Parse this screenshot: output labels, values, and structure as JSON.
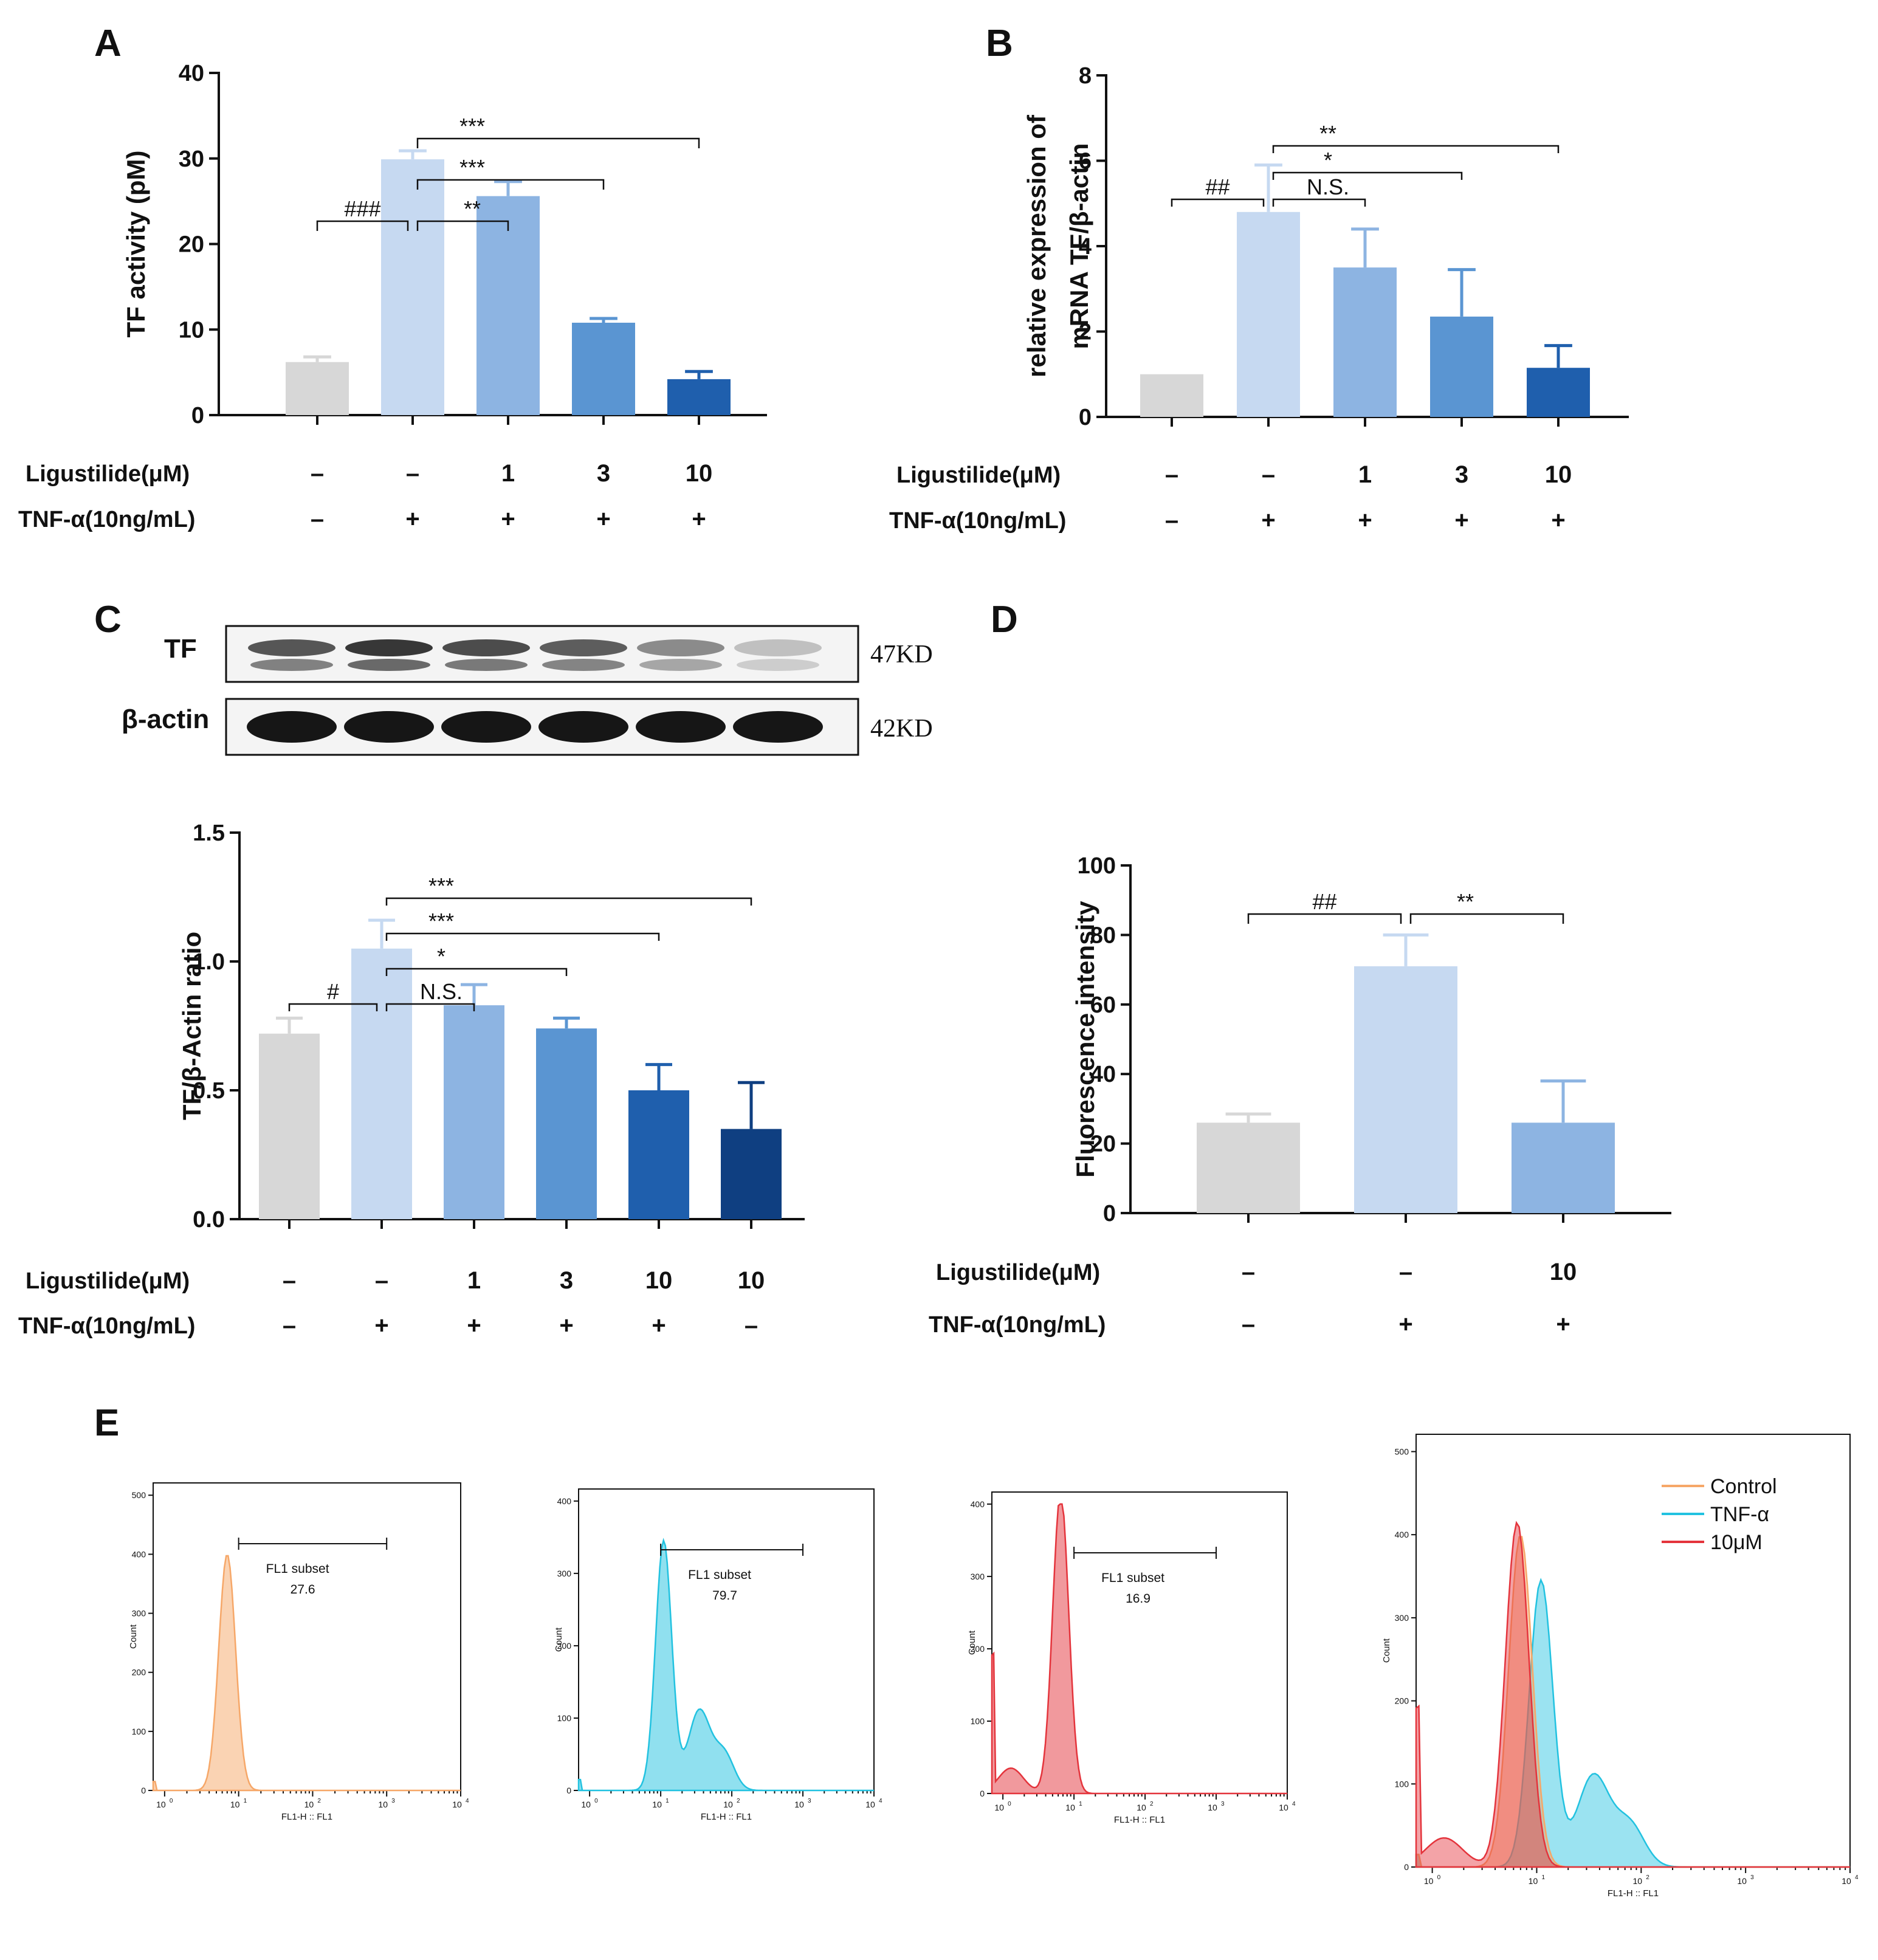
{
  "panel_labels": {
    "A": "A",
    "B": "B",
    "C": "C",
    "D": "D",
    "E": "E"
  },
  "colors": {
    "gray": "#d7d7d7",
    "light": "#c6d9f1",
    "mid": "#8db4e2",
    "blue": "#5a95d2",
    "dark": "#1f5fad",
    "darkest": "#0f3f81",
    "orange": "#f6a768",
    "cyan": "#22c2e0",
    "red": "#e4343c"
  },
  "row_labels": {
    "ligustilide": "Ligustilide(μM)",
    "tnf": "TNF-α(10ng/mL)"
  },
  "western": {
    "tf_label": "TF",
    "actin_label": "β-actin",
    "tf_kd": "47KD",
    "actin_kd": "42KD"
  },
  "chart_data": [
    {
      "id": "A",
      "type": "bar",
      "ylabel": "TF activity (pM)",
      "ylim": [
        0,
        40
      ],
      "yticks": [
        0,
        10,
        20,
        30,
        40
      ],
      "categories": [
        "ctrl",
        "tnf",
        "lig1",
        "lig3",
        "lig10"
      ],
      "values": [
        6.2,
        29.9,
        25.6,
        10.8,
        4.2
      ],
      "errors": [
        0.6,
        1.0,
        1.7,
        0.5,
        0.9
      ],
      "bar_colors": [
        "gray",
        "light",
        "mid",
        "blue",
        "dark"
      ],
      "ligustilide": [
        "–",
        "–",
        "1",
        "3",
        "10"
      ],
      "tnf": [
        "–",
        "+",
        "+",
        "+",
        "+"
      ],
      "comparisons": [
        {
          "from": 0,
          "to": 1,
          "label": "###"
        },
        {
          "from": 1,
          "to": 2,
          "label": "**"
        },
        {
          "from": 1,
          "to": 3,
          "label": "***"
        },
        {
          "from": 1,
          "to": 4,
          "label": "***"
        }
      ]
    },
    {
      "id": "B",
      "type": "bar",
      "ylabel": [
        "relative expression of",
        "mRNA TF/β-actin"
      ],
      "ylim": [
        0,
        8
      ],
      "yticks": [
        0,
        2,
        4,
        6,
        8
      ],
      "categories": [
        "ctrl",
        "tnf",
        "lig1",
        "lig3",
        "lig10"
      ],
      "values": [
        1.0,
        4.8,
        3.5,
        2.35,
        1.15
      ],
      "errors": [
        0,
        1.1,
        0.9,
        1.1,
        0.52
      ],
      "bar_colors": [
        "gray",
        "light",
        "mid",
        "blue",
        "dark"
      ],
      "ligustilide": [
        "–",
        "–",
        "1",
        "3",
        "10"
      ],
      "tnf": [
        "–",
        "+",
        "+",
        "+",
        "+"
      ],
      "comparisons": [
        {
          "from": 0,
          "to": 1,
          "label": "##"
        },
        {
          "from": 1,
          "to": 2,
          "label": "N.S."
        },
        {
          "from": 1,
          "to": 3,
          "label": "*"
        },
        {
          "from": 1,
          "to": 4,
          "label": "**"
        }
      ]
    },
    {
      "id": "C",
      "type": "bar",
      "ylabel": "TF/β-Actin ratio",
      "ylim": [
        0,
        1.5
      ],
      "yticks": [
        "0.0",
        "0.5",
        "1.0",
        "1.5"
      ],
      "categories": [
        "ctrl",
        "tnf",
        "lig1",
        "lig3",
        "lig10",
        "lig10only"
      ],
      "values": [
        0.72,
        1.05,
        0.83,
        0.74,
        0.5,
        0.35
      ],
      "errors": [
        0.06,
        0.11,
        0.08,
        0.04,
        0.1,
        0.18
      ],
      "bar_colors": [
        "gray",
        "light",
        "mid",
        "blue",
        "dark",
        "darkest"
      ],
      "ligustilide": [
        "–",
        "–",
        "1",
        "3",
        "10",
        "10"
      ],
      "tnf": [
        "–",
        "+",
        "+",
        "+",
        "+",
        "–"
      ],
      "comparisons": [
        {
          "from": 0,
          "to": 1,
          "label": "#"
        },
        {
          "from": 1,
          "to": 2,
          "label": "N.S."
        },
        {
          "from": 1,
          "to": 3,
          "label": "*"
        },
        {
          "from": 1,
          "to": 4,
          "label": "***"
        },
        {
          "from": 1,
          "to": 5,
          "label": "***"
        }
      ]
    },
    {
      "id": "D",
      "type": "bar",
      "ylabel": "Fluorescence intensity",
      "ylim": [
        0,
        100
      ],
      "yticks": [
        0,
        20,
        40,
        60,
        80,
        100
      ],
      "categories": [
        "ctrl",
        "tnf",
        "lig10"
      ],
      "values": [
        26,
        71,
        26
      ],
      "errors": [
        2.5,
        9,
        12
      ],
      "bar_colors": [
        "gray",
        "light",
        "mid"
      ],
      "ligustilide": [
        "–",
        "–",
        "10"
      ],
      "tnf": [
        "–",
        "+",
        "+"
      ],
      "comparisons": [
        {
          "from": 0,
          "to": 1,
          "label": "##"
        },
        {
          "from": 1,
          "to": 2,
          "label": "**"
        }
      ]
    },
    {
      "id": "E",
      "type": "histogram",
      "xlabel": "FL1-H :: FL1",
      "ylabel": "Count",
      "xscale": "log",
      "xlim": [
        0.7,
        10000
      ],
      "xtick_labels": [
        "10",
        "10",
        "10",
        "10",
        "10"
      ],
      "xtick_exponents": [
        "0",
        "1",
        "2",
        "3",
        "4"
      ],
      "subset_label": "FL1 subset",
      "plots": [
        {
          "name": "Control",
          "color": "orange",
          "ylim": [
            0,
            500
          ],
          "yticks": [
            "0",
            "100",
            "200",
            "300",
            "400",
            "500"
          ],
          "peak_x": 7,
          "peak_y": 400,
          "subset_value": "27.6"
        },
        {
          "name": "TNF-α",
          "color": "cyan",
          "ylim": [
            0,
            400
          ],
          "yticks": [
            "0",
            "100",
            "200",
            "300",
            "400"
          ],
          "peak_x": 11,
          "peak_y": 345,
          "subset_value": "79.7"
        },
        {
          "name": "10μM",
          "color": "red",
          "ylim": [
            0,
            400
          ],
          "yticks": [
            "0",
            "100",
            "200",
            "300",
            "400"
          ],
          "peak_x": 6.5,
          "peak_y": 415,
          "subset_value": "16.9"
        },
        {
          "name": "overlay",
          "ylim": [
            0,
            500
          ],
          "yticks": [
            "0",
            "100",
            "200",
            "300",
            "400",
            "500"
          ],
          "legend": [
            "Control",
            "TNF-α",
            "10μM"
          ],
          "legend_position": "top-right"
        }
      ]
    }
  ]
}
